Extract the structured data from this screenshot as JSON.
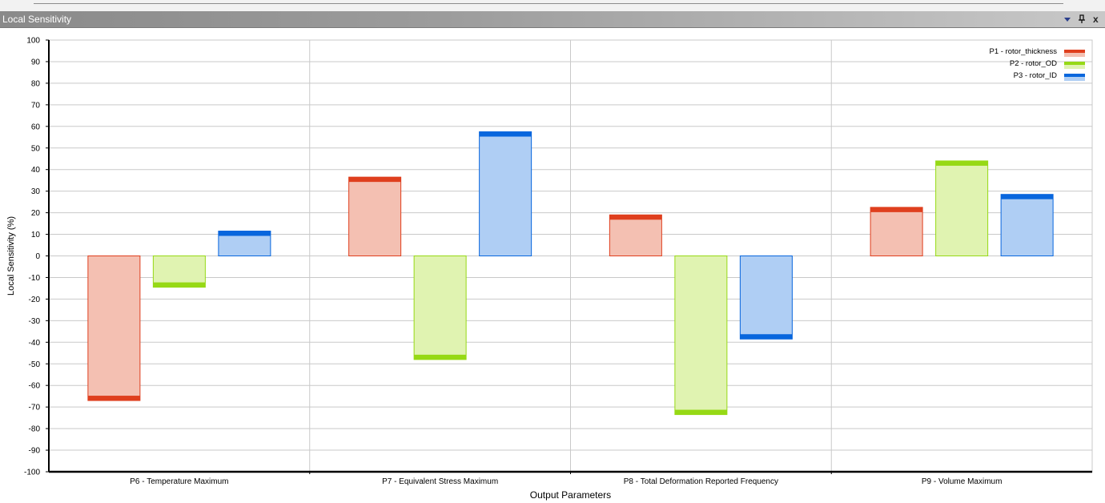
{
  "window": {
    "title": "Local Sensitivity",
    "controls": {
      "dropdown_icon": "triangle-down-icon",
      "pin_icon": "pin-icon",
      "close_label": "x"
    }
  },
  "colors": {
    "P1": {
      "fill": "#f4c0b2",
      "edge": "#df3f1e"
    },
    "P2": {
      "fill": "#e0f3b1",
      "edge": "#96d915"
    },
    "P3": {
      "fill": "#afcef4",
      "edge": "#0866dd"
    },
    "grid": "#c9c9c9"
  },
  "chart_data": {
    "type": "bar",
    "xlabel": "Output Parameters",
    "ylabel": "Local Sensitivity (%)",
    "ylim": [
      -100,
      100
    ],
    "yticks": [
      100,
      90,
      80,
      70,
      60,
      50,
      40,
      30,
      20,
      10,
      0,
      -10,
      -20,
      -30,
      -40,
      -50,
      -60,
      -70,
      -80,
      -90,
      -100
    ],
    "grid": true,
    "legend_position": "top-right",
    "categories": [
      "P6 - Temperature Maximum",
      "P7 - Equivalent Stress Maximum",
      "P8 - Total Deformation Reported Frequency",
      "P9 - Volume Maximum"
    ],
    "series": [
      {
        "name": "P1 - rotor_thickness",
        "values": [
          -67,
          36.5,
          19,
          22.5
        ]
      },
      {
        "name": "P2 - rotor_OD",
        "values": [
          -14.5,
          -48,
          -73.5,
          44
        ]
      },
      {
        "name": "P3 - rotor_ID",
        "values": [
          11.5,
          57.5,
          -38.5,
          28.5
        ]
      }
    ]
  }
}
